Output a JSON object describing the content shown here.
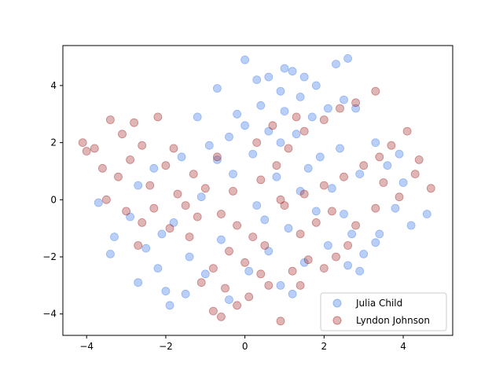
{
  "chart_data": {
    "type": "scatter",
    "xlim": [
      -4.6,
      5.25
    ],
    "ylim": [
      -4.75,
      5.4
    ],
    "x_ticks": [
      -4,
      -2,
      0,
      2,
      4
    ],
    "y_ticks": [
      -4,
      -2,
      0,
      2,
      4
    ],
    "x_tick_labels": [
      "−4",
      "−2",
      "0",
      "2",
      "4"
    ],
    "y_tick_labels": [
      "−4",
      "−2",
      "0",
      "2",
      "4"
    ],
    "grid": false,
    "legend_position": "lower-right",
    "series": [
      {
        "name": "Julia Child",
        "color": "#6495ED",
        "alpha": 0.45,
        "points": [
          [
            0.0,
            4.9
          ],
          [
            2.6,
            4.95
          ],
          [
            2.3,
            4.75
          ],
          [
            1.0,
            4.6
          ],
          [
            1.2,
            4.5
          ],
          [
            0.3,
            4.2
          ],
          [
            0.6,
            4.3
          ],
          [
            1.5,
            4.3
          ],
          [
            1.8,
            4.0
          ],
          [
            -0.7,
            3.9
          ],
          [
            0.9,
            3.8
          ],
          [
            1.4,
            3.6
          ],
          [
            2.5,
            3.5
          ],
          [
            2.1,
            3.2
          ],
          [
            0.4,
            3.3
          ],
          [
            -0.2,
            3.0
          ],
          [
            1.0,
            3.1
          ],
          [
            1.7,
            2.9
          ],
          [
            -1.2,
            2.9
          ],
          [
            0.0,
            2.6
          ],
          [
            2.8,
            3.2
          ],
          [
            0.6,
            2.4
          ],
          [
            1.3,
            2.3
          ],
          [
            -0.4,
            2.2
          ],
          [
            3.3,
            2.0
          ],
          [
            2.4,
            1.8
          ],
          [
            0.2,
            1.6
          ],
          [
            1.9,
            1.5
          ],
          [
            -0.7,
            1.4
          ],
          [
            3.6,
            1.2
          ],
          [
            2.9,
            0.9
          ],
          [
            0.8,
            0.8
          ],
          [
            4.0,
            0.6
          ],
          [
            -2.7,
            0.5
          ],
          [
            1.4,
            0.3
          ],
          [
            -3.7,
            -0.1
          ],
          [
            3.8,
            -0.3
          ],
          [
            0.3,
            -0.2
          ],
          [
            -2.9,
            -0.6
          ],
          [
            2.5,
            -0.5
          ],
          [
            4.2,
            -0.9
          ],
          [
            -1.8,
            -0.8
          ],
          [
            1.1,
            -1.0
          ],
          [
            3.4,
            -1.2
          ],
          [
            -3.3,
            -1.3
          ],
          [
            -0.6,
            -1.4
          ],
          [
            2.1,
            -1.6
          ],
          [
            4.6,
            -0.5
          ],
          [
            -2.5,
            -1.7
          ],
          [
            0.6,
            -1.8
          ],
          [
            3.0,
            -1.9
          ],
          [
            -3.4,
            -1.9
          ],
          [
            -1.4,
            -2.0
          ],
          [
            1.5,
            -2.2
          ],
          [
            2.6,
            -2.3
          ],
          [
            -2.2,
            -2.4
          ],
          [
            0.1,
            -2.5
          ],
          [
            -2.7,
            -2.9
          ],
          [
            -1.0,
            -2.6
          ],
          [
            2.9,
            -2.5
          ],
          [
            -2.0,
            -3.2
          ],
          [
            0.9,
            -3.0
          ],
          [
            -1.5,
            -3.3
          ],
          [
            -1.9,
            -3.7
          ],
          [
            -0.4,
            -3.5
          ],
          [
            1.2,
            -3.3
          ],
          [
            3.3,
            -1.5
          ],
          [
            -0.9,
            1.9
          ],
          [
            1.6,
            1.1
          ],
          [
            -2.3,
            1.1
          ],
          [
            0.5,
            -0.7
          ],
          [
            2.2,
            0.4
          ],
          [
            -1.1,
            0.1
          ],
          [
            3.9,
            1.6
          ],
          [
            0.9,
            2.0
          ],
          [
            -0.3,
            0.9
          ],
          [
            1.8,
            -0.4
          ],
          [
            -1.6,
            1.5
          ],
          [
            2.7,
            -1.2
          ],
          [
            -2.1,
            -1.2
          ]
        ]
      },
      {
        "name": "Lyndon Johnson",
        "color": "#A52A2A",
        "alpha": 0.35,
        "points": [
          [
            -4.1,
            2.0
          ],
          [
            -4.0,
            1.7
          ],
          [
            -3.8,
            1.8
          ],
          [
            -3.4,
            2.8
          ],
          [
            -3.1,
            2.3
          ],
          [
            -2.8,
            2.7
          ],
          [
            -2.6,
            1.9
          ],
          [
            -2.2,
            2.9
          ],
          [
            -3.6,
            1.1
          ],
          [
            -3.2,
            0.8
          ],
          [
            -2.9,
            1.4
          ],
          [
            -2.4,
            0.5
          ],
          [
            -2.0,
            1.2
          ],
          [
            -1.7,
            0.2
          ],
          [
            -1.3,
            0.9
          ],
          [
            -1.0,
            0.4
          ],
          [
            -1.8,
            1.8
          ],
          [
            -0.7,
            1.5
          ],
          [
            -3.5,
            0.0
          ],
          [
            -3.0,
            -0.4
          ],
          [
            -2.6,
            -0.8
          ],
          [
            -2.3,
            -0.3
          ],
          [
            -1.5,
            -0.2
          ],
          [
            -1.2,
            -0.6
          ],
          [
            -0.6,
            -0.5
          ],
          [
            -0.2,
            -0.9
          ],
          [
            0.2,
            -1.3
          ],
          [
            0.5,
            -1.6
          ],
          [
            -0.4,
            -1.8
          ],
          [
            0.0,
            -2.2
          ],
          [
            0.4,
            -2.6
          ],
          [
            -0.8,
            -2.4
          ],
          [
            -1.1,
            -2.9
          ],
          [
            -0.5,
            -3.1
          ],
          [
            0.1,
            -3.4
          ],
          [
            0.6,
            -3.0
          ],
          [
            -0.2,
            -3.7
          ],
          [
            -0.8,
            -3.9
          ],
          [
            -0.6,
            -4.1
          ],
          [
            1.4,
            -3.0
          ],
          [
            0.9,
            -4.25
          ],
          [
            1.2,
            -2.5
          ],
          [
            1.6,
            -2.1
          ],
          [
            2.0,
            -2.4
          ],
          [
            2.3,
            -2.0
          ],
          [
            2.6,
            -1.6
          ],
          [
            1.4,
            -1.2
          ],
          [
            1.8,
            -0.8
          ],
          [
            2.2,
            -0.4
          ],
          [
            1.0,
            -0.2
          ],
          [
            1.5,
            0.2
          ],
          [
            2.0,
            0.5
          ],
          [
            2.5,
            0.8
          ],
          [
            3.0,
            1.2
          ],
          [
            3.4,
            1.5
          ],
          [
            3.7,
            1.9
          ],
          [
            4.1,
            2.4
          ],
          [
            4.4,
            1.4
          ],
          [
            4.7,
            0.4
          ],
          [
            3.9,
            0.1
          ],
          [
            3.3,
            -0.3
          ],
          [
            2.8,
            -0.9
          ],
          [
            0.4,
            0.7
          ],
          [
            0.8,
            1.2
          ],
          [
            1.1,
            1.8
          ],
          [
            1.5,
            2.4
          ],
          [
            2.0,
            2.8
          ],
          [
            2.4,
            3.2
          ],
          [
            2.8,
            3.4
          ],
          [
            3.3,
            3.8
          ],
          [
            1.3,
            2.9
          ],
          [
            0.7,
            2.6
          ],
          [
            0.3,
            2.0
          ],
          [
            -0.3,
            0.3
          ],
          [
            0.9,
            0.0
          ],
          [
            3.5,
            0.6
          ],
          [
            4.3,
            0.9
          ],
          [
            -1.9,
            -1.0
          ],
          [
            -2.7,
            -1.6
          ],
          [
            -1.4,
            -1.3
          ]
        ]
      }
    ]
  }
}
